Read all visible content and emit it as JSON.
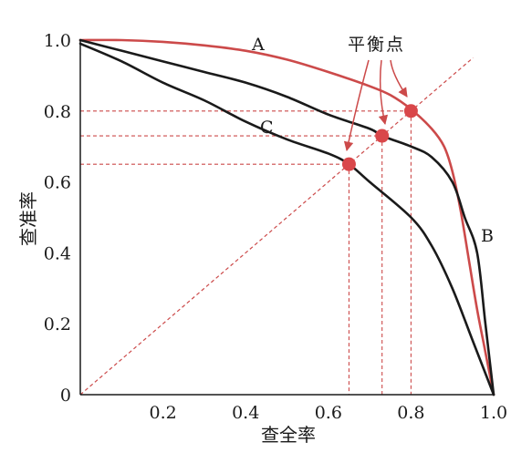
{
  "chart_data": {
    "type": "line",
    "xlabel": "查全率",
    "ylabel": "查准率",
    "xlim": [
      0,
      1
    ],
    "ylim": [
      0,
      1
    ],
    "xticks": [
      "0.2",
      "0.4",
      "0.6",
      "0.8",
      "1.0"
    ],
    "yticks": [
      "0",
      "0.2",
      "0.4",
      "0.6",
      "0.8",
      "1.0"
    ],
    "annotation": "平衡点",
    "series": [
      {
        "name": "A",
        "color": "#cc4a4a",
        "points": [
          [
            0,
            1.0
          ],
          [
            0.1,
            1.0
          ],
          [
            0.2,
            0.995
          ],
          [
            0.3,
            0.985
          ],
          [
            0.4,
            0.97
          ],
          [
            0.5,
            0.945
          ],
          [
            0.6,
            0.91
          ],
          [
            0.7,
            0.87
          ],
          [
            0.75,
            0.845
          ],
          [
            0.8,
            0.805
          ],
          [
            0.85,
            0.75
          ],
          [
            0.88,
            0.7
          ],
          [
            0.9,
            0.63
          ],
          [
            0.92,
            0.52
          ],
          [
            0.94,
            0.38
          ],
          [
            0.96,
            0.24
          ],
          [
            0.98,
            0.12
          ],
          [
            1.0,
            0.0
          ]
        ]
      },
      {
        "name": "B",
        "color": "#1a1a1a",
        "points": [
          [
            0,
            1.0
          ],
          [
            0.1,
            0.97
          ],
          [
            0.2,
            0.94
          ],
          [
            0.3,
            0.91
          ],
          [
            0.4,
            0.88
          ],
          [
            0.5,
            0.84
          ],
          [
            0.6,
            0.79
          ],
          [
            0.7,
            0.75
          ],
          [
            0.73,
            0.73
          ],
          [
            0.8,
            0.7
          ],
          [
            0.85,
            0.67
          ],
          [
            0.9,
            0.6
          ],
          [
            0.93,
            0.5
          ],
          [
            0.96,
            0.4
          ],
          [
            0.98,
            0.2
          ],
          [
            1.0,
            0.0
          ]
        ]
      },
      {
        "name": "C",
        "color": "#1a1a1a",
        "points": [
          [
            0,
            0.99
          ],
          [
            0.1,
            0.94
          ],
          [
            0.2,
            0.88
          ],
          [
            0.3,
            0.83
          ],
          [
            0.4,
            0.77
          ],
          [
            0.5,
            0.72
          ],
          [
            0.6,
            0.68
          ],
          [
            0.65,
            0.65
          ],
          [
            0.7,
            0.6
          ],
          [
            0.8,
            0.5
          ],
          [
            0.85,
            0.42
          ],
          [
            0.9,
            0.3
          ],
          [
            0.95,
            0.15
          ],
          [
            1.0,
            0.0
          ]
        ]
      }
    ],
    "diagonal": [
      [
        0,
        0
      ],
      [
        0.95,
        0.95
      ]
    ],
    "break_even_points": [
      {
        "x": 0.65,
        "y": 0.65
      },
      {
        "x": 0.73,
        "y": 0.73
      },
      {
        "x": 0.8,
        "y": 0.8
      }
    ],
    "colors": {
      "accent": "#cc4a4a",
      "dashed": "#cc4a4a",
      "dot": "#d9474a",
      "axis": "#1a1a1a"
    }
  }
}
